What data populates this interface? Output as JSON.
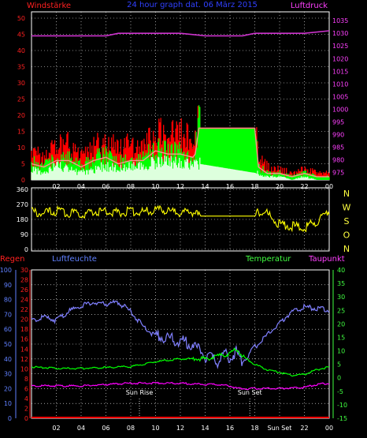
{
  "chart_data": [
    {
      "type": "line",
      "title": "24 hour graph dat. 06 März 2015",
      "left_label": "Windstärke",
      "right_label": "Luftdruck",
      "left_ticks": [
        0,
        5,
        10,
        15,
        20,
        25,
        30,
        35,
        40,
        45,
        50
      ],
      "right_ticks": [
        975,
        980,
        985,
        990,
        995,
        1000,
        1005,
        1010,
        1015,
        1020,
        1025,
        1030,
        1035
      ],
      "x_ticks": [
        "02",
        "04",
        "06",
        "08",
        "10",
        "12",
        "14",
        "16",
        "18",
        "20",
        "22",
        "00"
      ],
      "ylim_left": [
        0,
        50
      ],
      "ylim_right": [
        972,
        1036
      ],
      "series": [
        {
          "name": "wind_gust",
          "color": "#ff0000",
          "axis": "left",
          "x": [
            0,
            1,
            2,
            3,
            4,
            5,
            6,
            7,
            8,
            9,
            10,
            11,
            12,
            13,
            13.2,
            13.5,
            14,
            15,
            16,
            17,
            18,
            18.3,
            19,
            20,
            21,
            22,
            23,
            24
          ],
          "y": [
            8,
            7,
            9,
            10,
            6,
            9,
            11,
            8,
            10,
            9,
            14,
            12,
            13,
            11,
            12,
            16,
            16,
            16,
            16,
            16,
            16,
            6,
            4,
            3,
            2,
            3,
            2,
            2
          ]
        },
        {
          "name": "wind_avg",
          "color": "#00ff00",
          "axis": "left",
          "x": [
            0,
            1,
            2,
            3,
            4,
            5,
            6,
            7,
            8,
            9,
            10,
            11,
            12,
            13,
            13.2,
            13.5,
            14,
            15,
            16,
            17,
            18,
            18.3,
            19,
            20,
            21,
            22,
            23,
            24
          ],
          "y": [
            5,
            4,
            6,
            6,
            4,
            6,
            7,
            5,
            6,
            6,
            9,
            8,
            8,
            7,
            8,
            16,
            16,
            16,
            16,
            16,
            16,
            4,
            2,
            2,
            1,
            2,
            1,
            1
          ]
        },
        {
          "name": "wind_min",
          "color": "#ddffdd",
          "axis": "left",
          "x": [
            0,
            1,
            2,
            3,
            4,
            5,
            6,
            7,
            8,
            9,
            10,
            11,
            12,
            13,
            13.5,
            18.3,
            19,
            20,
            21,
            22,
            23,
            24
          ],
          "y": [
            3,
            2,
            4,
            3,
            2,
            3,
            4,
            3,
            4,
            4,
            5,
            5,
            5,
            4,
            5,
            2,
            1,
            1,
            0,
            1,
            0,
            0
          ]
        },
        {
          "name": "pressure",
          "color": "#cc33cc",
          "axis": "right",
          "x": [
            0,
            3,
            6,
            7,
            9,
            12,
            14,
            15,
            17,
            18,
            21,
            22,
            24
          ],
          "y": [
            1029,
            1029,
            1029,
            1030,
            1030,
            1030,
            1029,
            1029,
            1029,
            1030,
            1030,
            1030,
            1031
          ]
        }
      ]
    },
    {
      "type": "line",
      "left_ticks": [
        0,
        90,
        180,
        270,
        360
      ],
      "right_labels": [
        "N",
        "W",
        "S",
        "O",
        "N"
      ],
      "ylim": [
        0,
        360
      ],
      "series": [
        {
          "name": "wind_direction",
          "color": "#ffff00",
          "x": [
            0,
            1,
            2,
            3,
            4,
            5,
            6,
            7,
            8,
            9,
            10,
            11,
            12,
            13,
            13.5,
            18,
            18.3,
            19,
            19.5,
            20,
            21,
            22,
            23,
            24
          ],
          "y": [
            225,
            215,
            230,
            220,
            210,
            225,
            230,
            220,
            230,
            225,
            235,
            230,
            220,
            225,
            200,
            200,
            225,
            215,
            180,
            150,
            140,
            130,
            170,
            230
          ]
        }
      ]
    },
    {
      "type": "line",
      "labels": {
        "rain": "Regen",
        "humidity": "Luftfeuchte",
        "temperature": "Temperatur",
        "dewpoint": "Taupunkt"
      },
      "left_humidity_ticks": [
        0,
        10,
        20,
        30,
        40,
        50,
        60,
        70,
        80,
        90,
        100
      ],
      "left_rain_ticks": [
        0,
        2,
        4,
        6,
        8,
        10,
        12,
        14,
        16,
        18,
        20,
        22,
        24,
        26,
        28,
        30
      ],
      "right_ticks": [
        -15,
        -10,
        -5,
        0,
        5,
        10,
        15,
        20,
        25,
        30,
        35,
        40
      ],
      "x_ticks": [
        "02",
        "04",
        "06",
        "08",
        "10",
        "12",
        "14",
        "16",
        "18",
        "Sun Set",
        "22",
        "00"
      ],
      "annotations": [
        "Sun Rise",
        "Sun Set"
      ],
      "series": [
        {
          "name": "humidity",
          "color": "#8080ff",
          "axis": "humidity",
          "x": [
            0,
            1,
            2,
            3,
            4,
            5,
            6,
            7,
            8,
            9,
            10,
            11,
            12,
            13,
            14,
            15,
            15.5,
            16,
            16.5,
            17,
            18,
            19,
            20,
            21,
            22,
            23,
            24
          ],
          "y": [
            66,
            68,
            66,
            72,
            76,
            78,
            77,
            78,
            72,
            62,
            55,
            54,
            52,
            50,
            42,
            38,
            44,
            40,
            45,
            38,
            48,
            56,
            64,
            72,
            75,
            74,
            73
          ]
        },
        {
          "name": "temperature",
          "color": "#00ff00",
          "axis": "temp",
          "x": [
            0,
            2,
            4,
            6,
            8,
            9,
            10,
            11,
            12,
            13,
            14,
            15,
            16,
            16.5,
            17,
            18,
            19,
            20,
            21,
            22,
            23,
            24
          ],
          "y": [
            4,
            3.5,
            3.5,
            3.8,
            4.2,
            5,
            6,
            6.5,
            7,
            7,
            7,
            8,
            9,
            11,
            8,
            5,
            3,
            2,
            1,
            1.2,
            3,
            4
          ]
        },
        {
          "name": "dewpoint",
          "color": "#ff00ff",
          "axis": "temp",
          "x": [
            0,
            2,
            4,
            6,
            8,
            9,
            10,
            12,
            14,
            15,
            16,
            16.5,
            17,
            17.5,
            18,
            19,
            20,
            22,
            23,
            24
          ],
          "y": [
            -3,
            -3,
            -3,
            -2.5,
            -2,
            -2,
            -2,
            -2,
            -2.5,
            -2.5,
            -3,
            -3.8,
            -4,
            -4,
            -4,
            -4,
            -4,
            -3.5,
            -2.5,
            -2
          ]
        },
        {
          "name": "rain",
          "color": "#ff0000",
          "axis": "rain",
          "x": [
            0,
            24
          ],
          "y": [
            0,
            0
          ]
        }
      ]
    }
  ]
}
